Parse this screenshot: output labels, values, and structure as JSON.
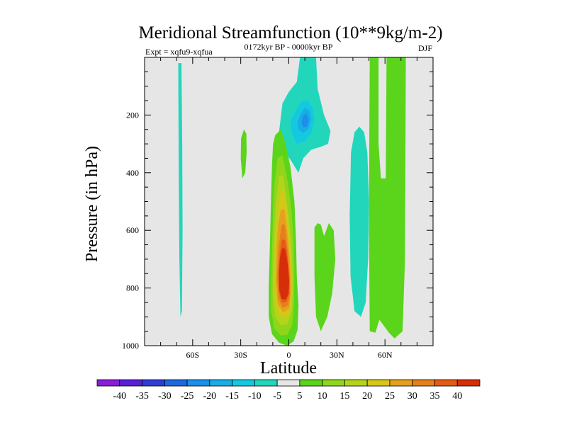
{
  "chart_data": {
    "type": "filled-contour",
    "title": "Meridional Streamfunction (10**9kg/m-2)",
    "subtitle_left": "Expt = xqfu9-xqfua",
    "subtitle_center": "0172kyr BP - 0000kyr BP",
    "subtitle_right": "DJF",
    "xlabel": "Latitude",
    "ylabel": "Pressure (in hPa)",
    "xlim": [
      -90,
      90
    ],
    "ylim": [
      1000,
      0
    ],
    "x_ticks": [
      {
        "value": -60,
        "label": "60S"
      },
      {
        "value": -30,
        "label": "30S"
      },
      {
        "value": 0,
        "label": "0"
      },
      {
        "value": 30,
        "label": "30N"
      },
      {
        "value": 60,
        "label": "60N"
      }
    ],
    "y_ticks": [
      {
        "value": 200,
        "label": "200"
      },
      {
        "value": 400,
        "label": "400"
      },
      {
        "value": 600,
        "label": "600"
      },
      {
        "value": 800,
        "label": "800"
      },
      {
        "value": 1000,
        "label": "1000"
      }
    ],
    "background_color": "#e6e6e6",
    "colorbar": {
      "labels": [
        "-40",
        "-35",
        "-30",
        "-25",
        "-20",
        "-15",
        "-10",
        "-5",
        "5",
        "10",
        "15",
        "20",
        "25",
        "30",
        "35",
        "40"
      ],
      "colors": [
        "#8a1ed6",
        "#5a1ed6",
        "#2d3ed6",
        "#1c6ae0",
        "#1b8fea",
        "#17aee6",
        "#14c8e0",
        "#22d6bc",
        "#e6e6e6",
        "#5ad51c",
        "#8fd61a",
        "#b4d41c",
        "#d6c618",
        "#e6a01e",
        "#e67e1e",
        "#e65a14",
        "#d62d0a"
      ]
    },
    "features": [
      {
        "name": "southern-negative-strip",
        "color": "#22d6bc",
        "lat_range": [
          -69,
          -66
        ],
        "p_range": [
          20,
          900
        ]
      },
      {
        "name": "small-positive-patch",
        "color": "#5ad51c",
        "lat_range": [
          -30,
          -26
        ],
        "p_range": [
          250,
          420
        ]
      },
      {
        "name": "hadley-cell-positive",
        "levels": [
          "5",
          "10",
          "15",
          "20",
          "25",
          "30",
          "35",
          "40"
        ],
        "lat_range": [
          -11,
          6
        ],
        "p_range": [
          270,
          990
        ],
        "peak_value": 40,
        "peak_lat": -3,
        "peak_p": 780
      },
      {
        "name": "upper-negative-cell",
        "levels": [
          "-5",
          "-10",
          "-15",
          "-20"
        ],
        "lat_range": [
          -6,
          26
        ],
        "p_range": [
          0,
          400
        ],
        "peak_value": -20,
        "peak_lat": 10,
        "peak_p": 220
      },
      {
        "name": "midlat-positive",
        "color": "#5ad51c",
        "lat_range": [
          16,
          29
        ],
        "p_range": [
          570,
          950
        ]
      },
      {
        "name": "ferrel-negative",
        "color": "#22d6bc",
        "lat_range": [
          38,
          50
        ],
        "p_range": [
          240,
          900
        ]
      },
      {
        "name": "polar-positive-strips",
        "color": "#5ad51c",
        "lat_range": [
          50,
          73
        ],
        "p_range": [
          0,
          980
        ]
      }
    ]
  }
}
